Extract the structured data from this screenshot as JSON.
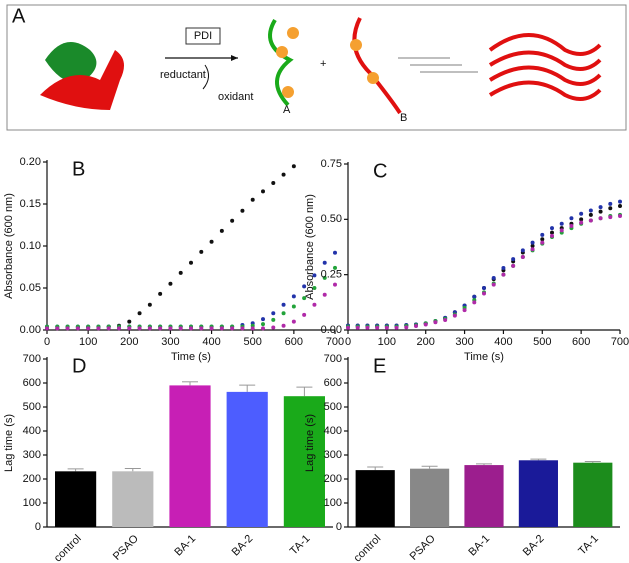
{
  "panel_a": {
    "label": "A",
    "box_label": "PDI",
    "reductant": "reductant",
    "oxidant": "oxidant",
    "product_a": "A",
    "plus": "+",
    "product_b": "B"
  },
  "chart_data": [
    {
      "type": "scatter",
      "panel": "B",
      "ylabel": "Absorbance (600 nm)",
      "xlabel": "Time (s)",
      "x": [
        0,
        25,
        50,
        75,
        100,
        125,
        150,
        175,
        200,
        225,
        250,
        275,
        300,
        325,
        350,
        375,
        400,
        425,
        450,
        475,
        500,
        525,
        550,
        575,
        600,
        625,
        650,
        675,
        700
      ],
      "series": [
        {
          "color": "#111111",
          "values": [
            0.002,
            0.002,
            0.003,
            0.003,
            0.003,
            0.003,
            0.004,
            0.005,
            0.01,
            0.02,
            0.03,
            0.043,
            0.055,
            0.068,
            0.08,
            0.093,
            0.105,
            0.118,
            0.13,
            0.142,
            0.155,
            0.165,
            0.175,
            0.185,
            0.195,
            null,
            null,
            null,
            null
          ]
        },
        {
          "color": "#2233aa",
          "values": [
            0.004,
            0.004,
            0.004,
            0.004,
            0.004,
            0.004,
            0.004,
            0.004,
            0.004,
            0.004,
            0.004,
            0.004,
            0.004,
            0.004,
            0.004,
            0.004,
            0.004,
            0.004,
            0.004,
            0.006,
            0.008,
            0.013,
            0.02,
            0.03,
            0.04,
            0.052,
            0.065,
            0.08,
            0.092
          ]
        },
        {
          "color": "#22a33a",
          "values": [
            0.004,
            0.004,
            0.004,
            0.004,
            0.004,
            0.004,
            0.004,
            0.004,
            0.004,
            0.004,
            0.004,
            0.004,
            0.004,
            0.004,
            0.004,
            0.004,
            0.004,
            0.004,
            0.004,
            0.004,
            0.005,
            0.007,
            0.012,
            0.02,
            0.028,
            0.038,
            0.05,
            0.062,
            0.074
          ]
        },
        {
          "color": "#b02aa8",
          "values": [
            0.002,
            0.002,
            0.002,
            0.002,
            0.002,
            0.002,
            0.002,
            0.002,
            0.002,
            0.002,
            0.002,
            0.002,
            0.002,
            0.002,
            0.002,
            0.002,
            0.002,
            0.002,
            0.002,
            0.002,
            0.002,
            0.002,
            0.003,
            0.005,
            0.01,
            0.018,
            0.03,
            0.042,
            0.054
          ]
        }
      ],
      "xlim": [
        0,
        700
      ],
      "xticks": [
        0,
        100,
        200,
        300,
        400,
        500,
        600,
        700
      ],
      "ylim": [
        0,
        0.2
      ],
      "yticks": [
        {
          "value": 0,
          "label": "0.00"
        },
        {
          "value": 0.05,
          "label": "0.05"
        },
        {
          "value": 0.1,
          "label": "0.10"
        },
        {
          "value": 0.15,
          "label": "0.15"
        },
        {
          "value": 0.2,
          "label": "0.20"
        }
      ]
    },
    {
      "type": "scatter",
      "panel": "C",
      "ylabel": "Absorbance (600 nm)",
      "xlabel": "Time (s)",
      "x": [
        0,
        25,
        50,
        75,
        100,
        125,
        150,
        175,
        200,
        225,
        250,
        275,
        300,
        325,
        350,
        375,
        400,
        425,
        450,
        475,
        500,
        525,
        550,
        575,
        600,
        625,
        650,
        675,
        700
      ],
      "series": [
        {
          "color": "#111111",
          "values": [
            0.02,
            0.02,
            0.02,
            0.02,
            0.02,
            0.02,
            0.022,
            0.025,
            0.03,
            0.04,
            0.055,
            0.08,
            0.11,
            0.15,
            0.19,
            0.23,
            0.27,
            0.31,
            0.35,
            0.38,
            0.41,
            0.44,
            0.46,
            0.48,
            0.5,
            0.52,
            0.535,
            0.55,
            0.56
          ]
        },
        {
          "color": "#2233aa",
          "values": [
            0.02,
            0.02,
            0.02,
            0.02,
            0.02,
            0.02,
            0.022,
            0.025,
            0.03,
            0.04,
            0.055,
            0.08,
            0.11,
            0.15,
            0.19,
            0.235,
            0.28,
            0.32,
            0.36,
            0.395,
            0.43,
            0.46,
            0.48,
            0.505,
            0.525,
            0.54,
            0.555,
            0.57,
            0.58
          ]
        },
        {
          "color": "#22a33a",
          "values": [
            0.015,
            0.015,
            0.015,
            0.015,
            0.015,
            0.015,
            0.018,
            0.022,
            0.03,
            0.04,
            0.05,
            0.07,
            0.1,
            0.135,
            0.17,
            0.21,
            0.25,
            0.29,
            0.33,
            0.36,
            0.39,
            0.42,
            0.44,
            0.46,
            0.48,
            0.495,
            0.505,
            0.515,
            0.52
          ]
        },
        {
          "color": "#b02aa8",
          "values": [
            0.01,
            0.01,
            0.01,
            0.01,
            0.01,
            0.01,
            0.012,
            0.018,
            0.025,
            0.035,
            0.045,
            0.065,
            0.09,
            0.125,
            0.165,
            0.205,
            0.25,
            0.29,
            0.33,
            0.365,
            0.395,
            0.425,
            0.45,
            0.47,
            0.485,
            0.495,
            0.505,
            0.51,
            0.515
          ]
        }
      ],
      "xlim": [
        0,
        700
      ],
      "xticks": [
        0,
        100,
        200,
        300,
        400,
        500,
        600,
        700
      ],
      "ylim": [
        0,
        0.75
      ],
      "yticks": [
        {
          "value": 0,
          "label": "0.00"
        },
        {
          "value": 0.25,
          "label": "0.25"
        },
        {
          "value": 0.5,
          "label": "0.50"
        },
        {
          "value": 0.75,
          "label": "0.75"
        }
      ]
    },
    {
      "type": "bar",
      "panel": "D",
      "ylabel": "Lag time (s)",
      "categories": [
        "control",
        "PSAO",
        "BA-1",
        "BA-2",
        "TA-1"
      ],
      "values": [
        232,
        232,
        590,
        563,
        545
      ],
      "errors": [
        10,
        12,
        15,
        28,
        38
      ],
      "colors": [
        "#000000",
        "#bbbbbb",
        "#c71fb5",
        "#4d5dff",
        "#1aaa1a"
      ],
      "ylim": [
        0,
        700
      ],
      "yticks": [
        0,
        100,
        200,
        300,
        400,
        500,
        600,
        700
      ]
    },
    {
      "type": "bar",
      "panel": "E",
      "ylabel": "Lag time (s)",
      "categories": [
        "control",
        "PSAO",
        "BA-1",
        "BA-2",
        "TA-1"
      ],
      "values": [
        237,
        243,
        258,
        278,
        268
      ],
      "errors": [
        13,
        10,
        5,
        5,
        5
      ],
      "colors": [
        "#000000",
        "#888888",
        "#9c1e8e",
        "#1a1a99",
        "#1c8c1c"
      ],
      "ylim": [
        0,
        700
      ],
      "yticks": [
        0,
        100,
        200,
        300,
        400,
        500,
        600,
        700
      ]
    }
  ]
}
